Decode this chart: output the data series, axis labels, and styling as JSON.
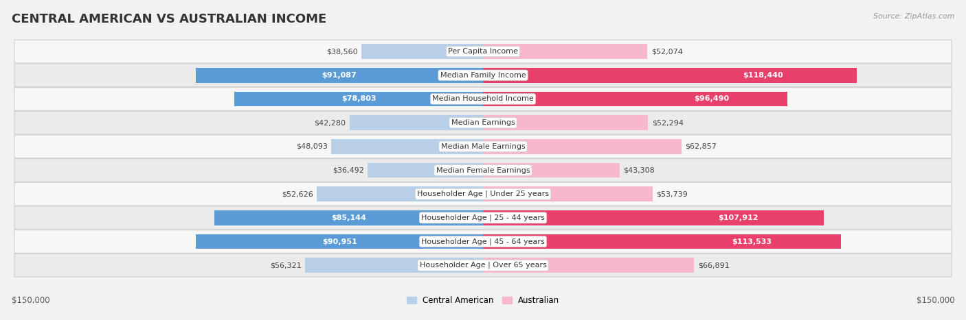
{
  "title": "CENTRAL AMERICAN VS AUSTRALIAN INCOME",
  "source": "Source: ZipAtlas.com",
  "categories": [
    "Per Capita Income",
    "Median Family Income",
    "Median Household Income",
    "Median Earnings",
    "Median Male Earnings",
    "Median Female Earnings",
    "Householder Age | Under 25 years",
    "Householder Age | 25 - 44 years",
    "Householder Age | 45 - 64 years",
    "Householder Age | Over 65 years"
  ],
  "central_american": [
    38560,
    91087,
    78803,
    42280,
    48093,
    36492,
    52626,
    85144,
    90951,
    56321
  ],
  "australian": [
    52074,
    118440,
    96490,
    52294,
    62857,
    43308,
    53739,
    107912,
    113533,
    66891
  ],
  "ca_labels": [
    "$38,560",
    "$91,087",
    "$78,803",
    "$42,280",
    "$48,093",
    "$36,492",
    "$52,626",
    "$85,144",
    "$90,951",
    "$56,321"
  ],
  "au_labels": [
    "$52,074",
    "$118,440",
    "$96,490",
    "$52,294",
    "$62,857",
    "$43,308",
    "$53,739",
    "$107,912",
    "$113,533",
    "$66,891"
  ],
  "ca_color_light": "#b8cfe8",
  "ca_color_dark": "#5b9bd5",
  "au_color_light": "#f7b8cb",
  "au_color_dark": "#e8406a",
  "ca_threshold": 70000,
  "au_threshold": 80000,
  "max_value": 150000,
  "bg_color": "#f2f2f2",
  "row_color_even": "#f7f7f7",
  "row_color_odd": "#ebebeb",
  "legend_ca": "Central American",
  "legend_au": "Australian",
  "xlabel_left": "$150,000",
  "xlabel_right": "$150,000",
  "title_fontsize": 13,
  "label_fontsize": 8,
  "cat_fontsize": 8
}
